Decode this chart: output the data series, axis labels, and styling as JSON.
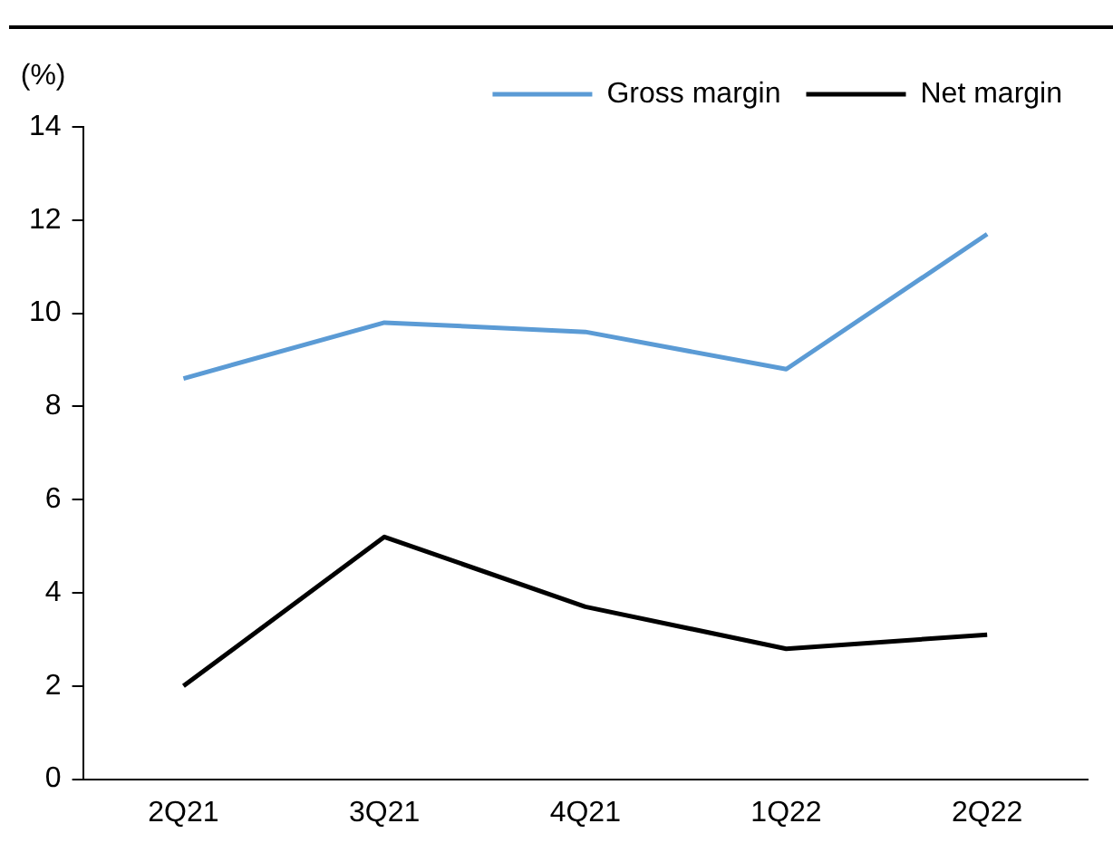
{
  "chart_data": {
    "type": "line",
    "ylabel": "(%)",
    "categories": [
      "2Q21",
      "3Q21",
      "4Q21",
      "1Q22",
      "2Q22"
    ],
    "series": [
      {
        "name": "Gross margin",
        "color": "#5b9bd5",
        "values": [
          8.6,
          9.8,
          9.6,
          8.8,
          11.7
        ]
      },
      {
        "name": "Net margin",
        "color": "#000000",
        "values": [
          2.0,
          5.2,
          3.7,
          2.8,
          3.1
        ]
      }
    ],
    "ylim": [
      0,
      14
    ],
    "yticks": [
      0,
      2,
      4,
      6,
      8,
      10,
      12,
      14
    ],
    "grid": false,
    "legend": "top right",
    "marker": "none",
    "line_style": "solid"
  }
}
